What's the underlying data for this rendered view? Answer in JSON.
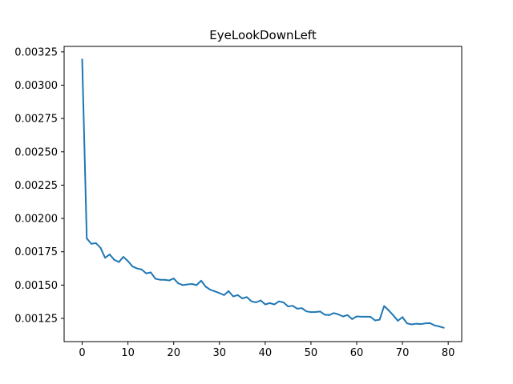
{
  "chart_data": {
    "type": "line",
    "title": "EyeLookDownLeft",
    "xlabel": "",
    "ylabel": "",
    "xlim": [
      -3.95,
      82.95
    ],
    "ylim": [
      0.001076,
      0.003291
    ],
    "x_ticks": [
      0,
      10,
      20,
      30,
      40,
      50,
      60,
      70,
      80
    ],
    "x_tick_labels": [
      "0",
      "10",
      "20",
      "30",
      "40",
      "50",
      "60",
      "70",
      "80"
    ],
    "y_ticks": [
      0.00125,
      0.0015,
      0.00175,
      0.002,
      0.00225,
      0.0025,
      0.00275,
      0.003,
      0.00325
    ],
    "y_tick_labels": [
      "0.00125",
      "0.00150",
      "0.00175",
      "0.00200",
      "0.00225",
      "0.00250",
      "0.00275",
      "0.00300",
      "0.00325"
    ],
    "grid": false,
    "legend": "none",
    "series": [
      {
        "color": "#1f77b4",
        "x": [
          0,
          1,
          2,
          3,
          4,
          5,
          6,
          7,
          8,
          9,
          10,
          11,
          12,
          13,
          14,
          15,
          16,
          17,
          18,
          19,
          20,
          21,
          22,
          23,
          24,
          25,
          26,
          27,
          28,
          29,
          30,
          31,
          32,
          33,
          34,
          35,
          36,
          37,
          38,
          39,
          40,
          41,
          42,
          43,
          44,
          45,
          46,
          47,
          48,
          49,
          50,
          51,
          52,
          53,
          54,
          55,
          56,
          57,
          58,
          59,
          60,
          61,
          62,
          63,
          64,
          65,
          66,
          67,
          68,
          69,
          70,
          71,
          72,
          73,
          74,
          75,
          76,
          77,
          78,
          79
        ],
        "values": [
          0.003192,
          0.00185,
          0.00181,
          0.001815,
          0.00178,
          0.001705,
          0.00173,
          0.00169,
          0.001673,
          0.001712,
          0.00168,
          0.00164,
          0.001625,
          0.001617,
          0.001588,
          0.001595,
          0.001548,
          0.00154,
          0.00154,
          0.001535,
          0.00155,
          0.001513,
          0.0015,
          0.001505,
          0.001508,
          0.0015,
          0.001533,
          0.001488,
          0.001465,
          0.001453,
          0.00144,
          0.001425,
          0.001455,
          0.001415,
          0.001425,
          0.0014,
          0.00141,
          0.001378,
          0.00137,
          0.001385,
          0.001355,
          0.001365,
          0.001355,
          0.001378,
          0.00137,
          0.00134,
          0.001345,
          0.001323,
          0.001327,
          0.001303,
          0.001297,
          0.001298,
          0.001302,
          0.001278,
          0.001275,
          0.00129,
          0.00128,
          0.001265,
          0.001275,
          0.001245,
          0.001265,
          0.001263,
          0.001263,
          0.001262,
          0.001235,
          0.00124,
          0.001343,
          0.00131,
          0.001273,
          0.001232,
          0.00126,
          0.001213,
          0.001205,
          0.00121,
          0.001207,
          0.001213,
          0.001215,
          0.001198,
          0.00119,
          0.00118
        ]
      }
    ]
  }
}
